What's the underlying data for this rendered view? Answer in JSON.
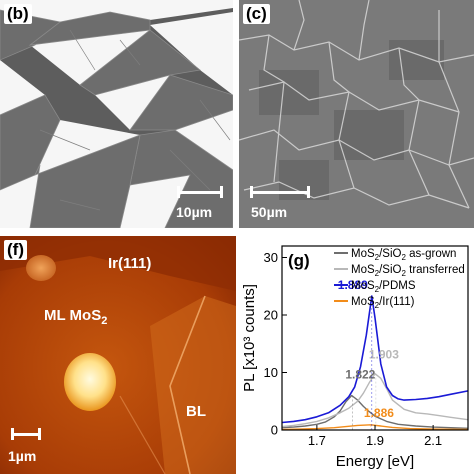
{
  "panels": {
    "b": {
      "label": "(b)",
      "scale_text": "10µm"
    },
    "c": {
      "label": "(c)",
      "scale_text": "50µm"
    },
    "f": {
      "label": "(f)",
      "scale_text": "1µm",
      "annotations": {
        "ir": "Ir(111)",
        "ml_prefix": "ML MoS",
        "ml_sub": "2",
        "bl": "BL"
      }
    }
  },
  "chart_data": {
    "type": "line",
    "panel_label": "(g)",
    "xlabel": "Energy [eV]",
    "ylabel": "PL [x10³ counts]",
    "xlim": [
      1.58,
      2.22
    ],
    "ylim": [
      0,
      32
    ],
    "xticks": [
      1.7,
      1.9,
      2.1
    ],
    "yticks": [
      0,
      10,
      20,
      30
    ],
    "grid": false,
    "legend_placement": "top-right",
    "series": [
      {
        "name": "MoS2/SiO2 as-grown",
        "name_parts": [
          "MoS",
          "2",
          "/SiO",
          "2",
          " as-grown"
        ],
        "color": "#6e6e6e",
        "peak_label": "1.822",
        "peak": [
          1.822,
          6.0
        ],
        "x": [
          1.58,
          1.62,
          1.66,
          1.7,
          1.73,
          1.76,
          1.78,
          1.8,
          1.82,
          1.84,
          1.86,
          1.88,
          1.9,
          1.94,
          1.98,
          2.04,
          2.1,
          2.16,
          2.22
        ],
        "y": [
          0.4,
          0.5,
          0.7,
          1.0,
          1.4,
          2.3,
          3.3,
          4.9,
          6.0,
          5.2,
          4.1,
          3.2,
          2.4,
          1.5,
          1.0,
          0.7,
          0.5,
          0.4,
          0.3
        ]
      },
      {
        "name": "MoS2/SiO2 transferred",
        "name_parts": [
          "MoS",
          "2",
          "/SiO",
          "2",
          " transferred"
        ],
        "color": "#b8b8b8",
        "peak_label": "1.903",
        "peak": [
          1.903,
          9.8
        ],
        "x": [
          1.58,
          1.62,
          1.66,
          1.7,
          1.74,
          1.78,
          1.81,
          1.84,
          1.86,
          1.88,
          1.9,
          1.92,
          1.94,
          1.96,
          2.0,
          2.04,
          2.08,
          2.12,
          2.16,
          2.22
        ],
        "y": [
          0.6,
          0.8,
          1.1,
          1.5,
          2.1,
          3.0,
          3.8,
          5.0,
          6.4,
          8.2,
          9.8,
          9.0,
          7.2,
          5.2,
          3.6,
          3.0,
          2.8,
          2.5,
          2.2,
          1.8
        ]
      },
      {
        "name": "MoS2/PDMS",
        "name_parts": [
          "MoS",
          "2",
          "/PDMS",
          "",
          ""
        ],
        "color": "#1a1ad6",
        "peak_label": "1.889",
        "peak": [
          1.889,
          23.3
        ],
        "x": [
          1.58,
          1.62,
          1.66,
          1.7,
          1.74,
          1.78,
          1.81,
          1.83,
          1.85,
          1.87,
          1.889,
          1.9,
          1.92,
          1.94,
          1.96,
          1.98,
          2.0,
          2.04,
          2.08,
          2.12,
          2.16,
          2.22
        ],
        "y": [
          1.3,
          1.5,
          1.8,
          2.3,
          3.0,
          4.3,
          5.8,
          7.5,
          11.0,
          16.5,
          23.3,
          19.5,
          11.5,
          7.5,
          6.0,
          5.4,
          5.2,
          5.3,
          5.5,
          5.8,
          6.2,
          6.8
        ]
      },
      {
        "name": "MoS2/Ir(111)",
        "name_parts": [
          "MoS",
          "2",
          "/Ir(111)",
          "",
          ""
        ],
        "color": "#f28c1a",
        "peak_label": "1.886",
        "peak": [
          1.886,
          0.9
        ],
        "x": [
          1.58,
          1.64,
          1.7,
          1.76,
          1.8,
          1.84,
          1.886,
          1.92,
          1.96,
          2.02,
          2.1,
          2.22
        ],
        "y": [
          0.1,
          0.15,
          0.25,
          0.4,
          0.6,
          0.8,
          0.9,
          0.7,
          0.45,
          0.25,
          0.15,
          0.1
        ]
      }
    ]
  }
}
